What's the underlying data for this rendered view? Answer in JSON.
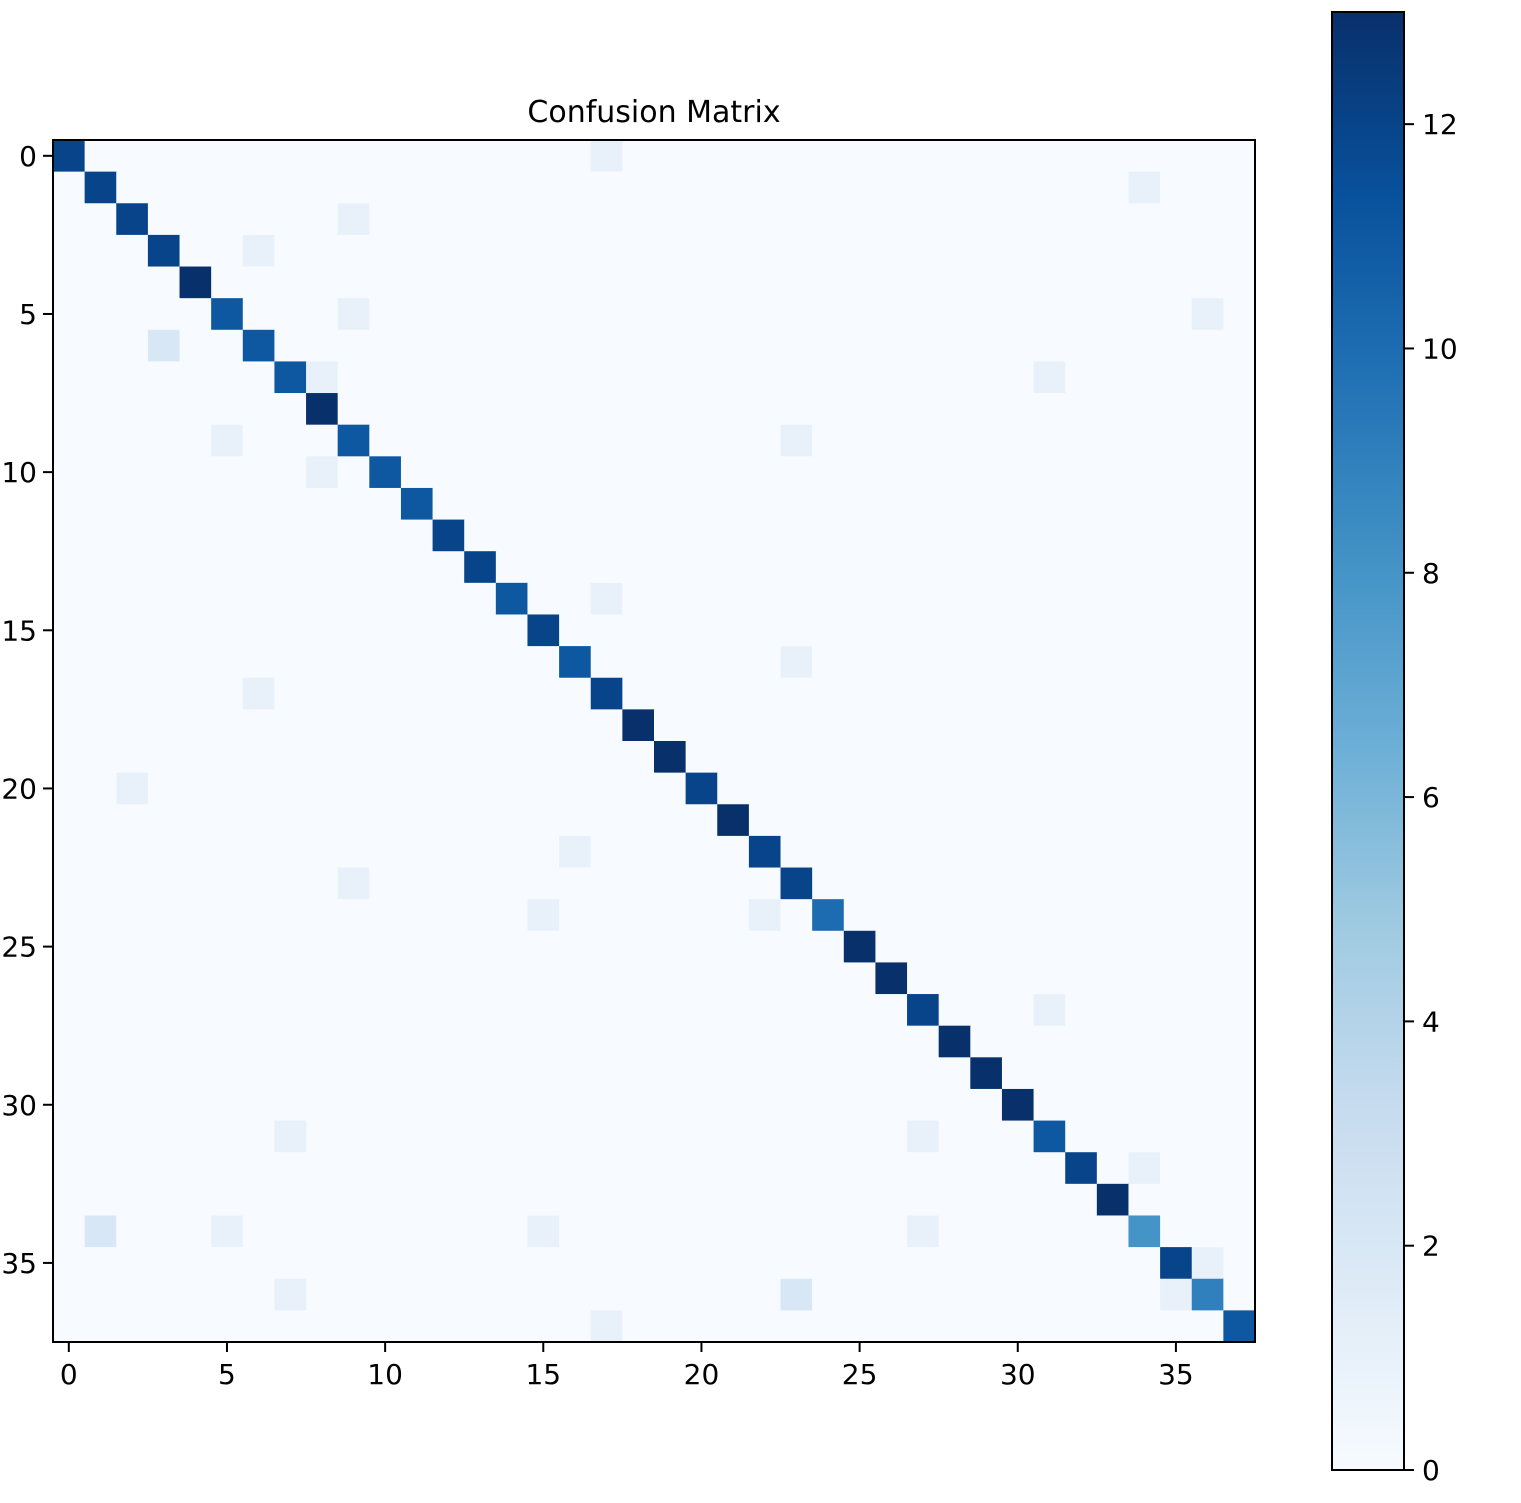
{
  "chart_data": {
    "type": "heatmap",
    "title": "Confusion Matrix",
    "xlabel": "",
    "ylabel": "",
    "size": 38,
    "x_ticks": [
      0,
      5,
      10,
      15,
      20,
      25,
      30,
      35
    ],
    "y_ticks": [
      0,
      5,
      10,
      15,
      20,
      25,
      30,
      35
    ],
    "colormap": "Blues",
    "colorbar": {
      "min": 0,
      "max": 13,
      "ticks": [
        0,
        2,
        4,
        6,
        8,
        10,
        12
      ]
    },
    "diagonal": [
      12,
      12,
      12,
      12,
      13,
      11,
      11,
      11,
      13,
      11,
      11,
      11,
      12,
      12,
      11,
      12,
      11,
      12,
      13,
      13,
      12,
      13,
      12,
      12,
      10,
      13,
      13,
      12,
      13,
      13,
      13,
      11,
      12,
      13,
      8,
      12,
      9,
      11
    ],
    "off_diagonal": [
      {
        "row": 0,
        "col": 17,
        "value": 1
      },
      {
        "row": 1,
        "col": 34,
        "value": 1
      },
      {
        "row": 2,
        "col": 9,
        "value": 1
      },
      {
        "row": 3,
        "col": 6,
        "value": 1
      },
      {
        "row": 5,
        "col": 9,
        "value": 1
      },
      {
        "row": 5,
        "col": 36,
        "value": 1
      },
      {
        "row": 6,
        "col": 3,
        "value": 2
      },
      {
        "row": 7,
        "col": 8,
        "value": 1
      },
      {
        "row": 7,
        "col": 31,
        "value": 1
      },
      {
        "row": 9,
        "col": 5,
        "value": 1
      },
      {
        "row": 9,
        "col": 23,
        "value": 1
      },
      {
        "row": 10,
        "col": 8,
        "value": 1
      },
      {
        "row": 14,
        "col": 17,
        "value": 1
      },
      {
        "row": 16,
        "col": 23,
        "value": 1
      },
      {
        "row": 17,
        "col": 6,
        "value": 1
      },
      {
        "row": 20,
        "col": 2,
        "value": 1
      },
      {
        "row": 22,
        "col": 16,
        "value": 1
      },
      {
        "row": 23,
        "col": 9,
        "value": 1
      },
      {
        "row": 24,
        "col": 15,
        "value": 1
      },
      {
        "row": 24,
        "col": 22,
        "value": 1
      },
      {
        "row": 27,
        "col": 31,
        "value": 1
      },
      {
        "row": 31,
        "col": 7,
        "value": 1
      },
      {
        "row": 31,
        "col": 27,
        "value": 1
      },
      {
        "row": 32,
        "col": 34,
        "value": 1
      },
      {
        "row": 34,
        "col": 1,
        "value": 2
      },
      {
        "row": 34,
        "col": 5,
        "value": 1
      },
      {
        "row": 34,
        "col": 15,
        "value": 1
      },
      {
        "row": 34,
        "col": 27,
        "value": 1
      },
      {
        "row": 35,
        "col": 36,
        "value": 1
      },
      {
        "row": 36,
        "col": 7,
        "value": 1
      },
      {
        "row": 36,
        "col": 23,
        "value": 2
      },
      {
        "row": 36,
        "col": 35,
        "value": 1
      },
      {
        "row": 37,
        "col": 17,
        "value": 1
      }
    ]
  }
}
